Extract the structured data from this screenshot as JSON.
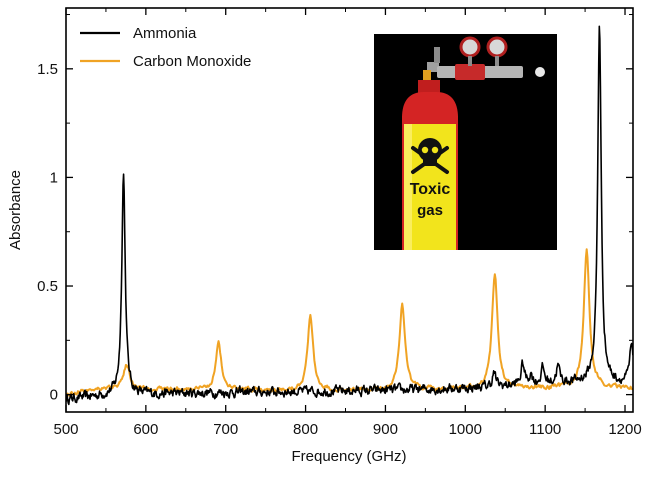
{
  "chart_data": {
    "type": "line",
    "xlabel": "Frequency (GHz)",
    "ylabel": "Absorbance",
    "xlim": [
      500,
      1210
    ],
    "ylim": [
      -0.08,
      1.78
    ],
    "x_ticks": [
      500,
      600,
      700,
      800,
      900,
      1000,
      1100,
      1200
    ],
    "x_tick_labels": [
      "500",
      "600",
      "700",
      "800",
      "900",
      "1000",
      "1100",
      "1200"
    ],
    "y_ticks": [
      0,
      0.5,
      1,
      1.5
    ],
    "y_tick_labels": [
      "0",
      "0.5",
      "1",
      "1.5"
    ],
    "grid": false,
    "legend_position": "top-left",
    "series": [
      {
        "name": "Ammonia",
        "color": "#000000",
        "baseline": [
          [
            500,
            -0.02
          ],
          [
            560,
            0.0
          ],
          [
            700,
            0.01
          ],
          [
            900,
            0.02
          ],
          [
            1000,
            0.03
          ],
          [
            1100,
            0.05
          ],
          [
            1160,
            0.06
          ],
          [
            1210,
            0.05
          ]
        ],
        "peaks": [
          {
            "x": 572,
            "y": 1.02
          },
          {
            "x": 1036,
            "y": 0.1
          },
          {
            "x": 1072,
            "y": 0.14
          },
          {
            "x": 1082,
            "y": 0.09
          },
          {
            "x": 1097,
            "y": 0.12
          },
          {
            "x": 1116,
            "y": 0.13
          },
          {
            "x": 1168,
            "y": 1.71
          },
          {
            "x": 1208,
            "y": 0.22
          }
        ]
      },
      {
        "name": "Carbon Monoxide",
        "color": "#f0a324",
        "baseline": [
          [
            500,
            0.0
          ],
          [
            540,
            0.03
          ],
          [
            700,
            0.02
          ],
          [
            900,
            0.02
          ],
          [
            1100,
            0.03
          ],
          [
            1210,
            0.03
          ]
        ],
        "peaks": [
          {
            "x": 576,
            "y": 0.14
          },
          {
            "x": 691,
            "y": 0.24
          },
          {
            "x": 806,
            "y": 0.36
          },
          {
            "x": 921,
            "y": 0.42
          },
          {
            "x": 1037,
            "y": 0.56
          },
          {
            "x": 1152,
            "y": 0.67
          }
        ]
      }
    ]
  },
  "inset": {
    "label_line1": "Toxic",
    "label_line2": "gas"
  }
}
